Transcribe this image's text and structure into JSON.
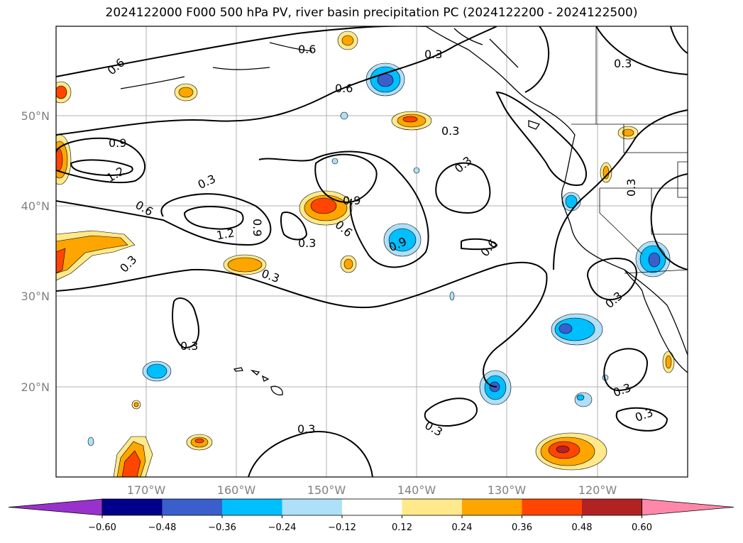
{
  "title": "2024122000 F000 500 hPa PV, river basin precipitation PC (2024122200 - 2024122500)",
  "lat_labels": [
    "50°N",
    "40°N",
    "30°N",
    "20°N"
  ],
  "lon_labels": [
    "170°W",
    "160°W",
    "150°W",
    "140°W",
    "130°W",
    "120°W"
  ],
  "contour_labels": [
    "0.6",
    "0.6",
    "0.3",
    "0.3",
    "0.6",
    "0.3",
    "0.9",
    "1.2",
    "0.3",
    "0.6",
    "1.2",
    "0.9",
    "0.3",
    "0.9",
    "0.6",
    "0.9",
    "0.3",
    "0.6",
    "0.3",
    "0.3",
    "0.3",
    "0.3",
    "0.3",
    "0.3",
    "0.3",
    "0.3",
    "0.3"
  ],
  "colorbar": {
    "ticks": [
      "−0.60",
      "−0.48",
      "−0.36",
      "−0.24",
      "−0.12",
      "0.12",
      "0.24",
      "0.36",
      "0.48",
      "0.60"
    ],
    "colors": [
      "#9932cc",
      "#00008b",
      "#3a5fcd",
      "#00bfff",
      "#afe0fa",
      "#ffffff",
      "#ffe98a",
      "#ffa500",
      "#ff4500",
      "#b22222",
      "#ff88aa"
    ]
  },
  "map_extent": {
    "lon": [
      -180,
      -110
    ],
    "lat": [
      10,
      60
    ]
  }
}
